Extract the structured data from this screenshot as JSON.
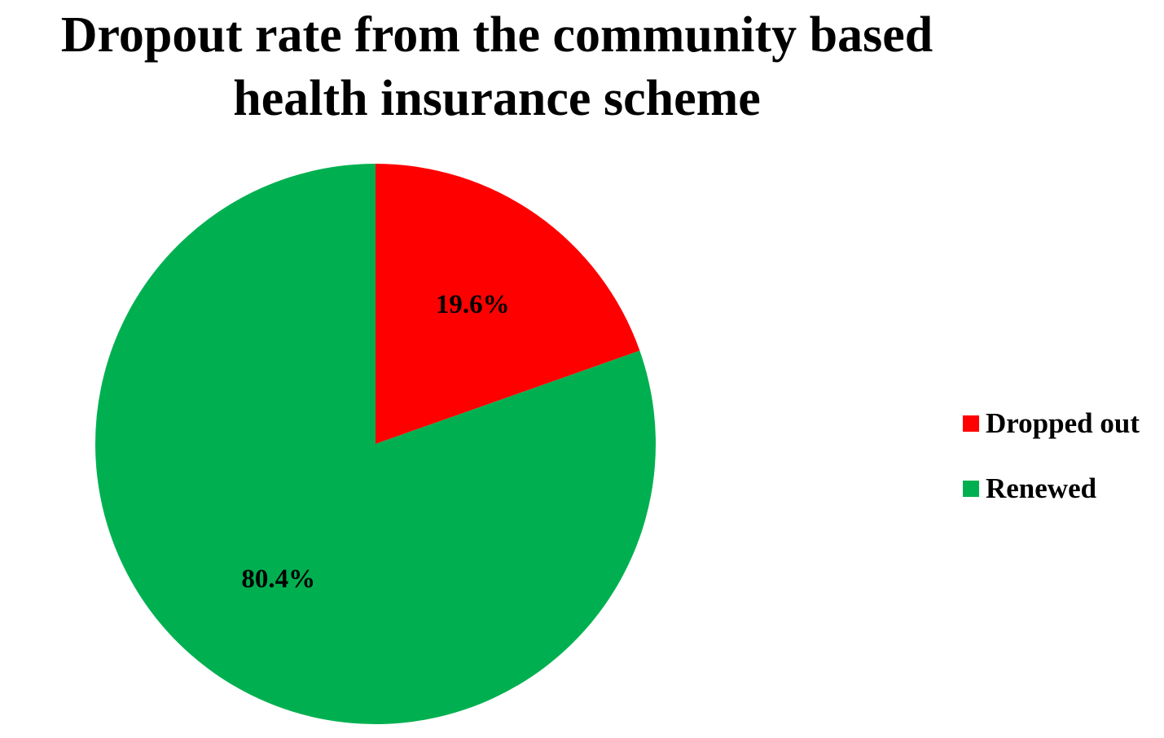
{
  "chart_data": {
    "type": "pie",
    "title_lines": [
      "Dropout rate from the community based",
      "health insurance scheme"
    ],
    "categories": [
      "Dropped out",
      "Renewed"
    ],
    "values": [
      19.6,
      80.4
    ],
    "data_labels": [
      "19.6%",
      "80.4%"
    ],
    "colors": [
      "#ff0000",
      "#00b050"
    ],
    "start_angle_deg": 0,
    "direction": "clockwise",
    "legend_position": "right"
  }
}
